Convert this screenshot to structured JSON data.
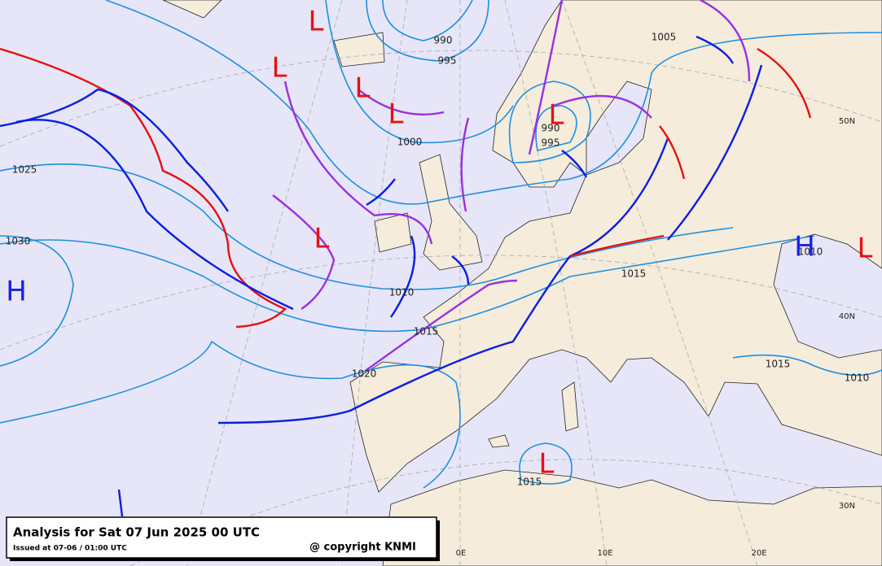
{
  "header": {
    "title": "Analysis for Sat 07 Jun 2025 00 UTC",
    "issued": "Issued at 07-06 / 01:00 UTC",
    "copyright": "@ copyright KNMI"
  },
  "pressure_centers": [
    {
      "label": "L",
      "kind": "low"
    },
    {
      "label": "L",
      "kind": "low"
    },
    {
      "label": "L",
      "kind": "low"
    },
    {
      "label": "L",
      "kind": "low"
    },
    {
      "label": "L",
      "kind": "low"
    },
    {
      "label": "L",
      "kind": "low"
    },
    {
      "label": "L",
      "kind": "low"
    },
    {
      "label": "L",
      "kind": "low"
    },
    {
      "label": "H",
      "kind": "high"
    },
    {
      "label": "H",
      "kind": "high"
    }
  ],
  "isobar_labels": [
    "990",
    "995",
    "1000",
    "1005",
    "1025",
    "1030",
    "1010",
    "1015",
    "1020",
    "1015",
    "1015",
    "1010",
    "1015",
    "990",
    "995",
    "1010"
  ],
  "grid_labels": [
    "50N",
    "40N",
    "30N",
    "0E",
    "10E",
    "20E"
  ]
}
